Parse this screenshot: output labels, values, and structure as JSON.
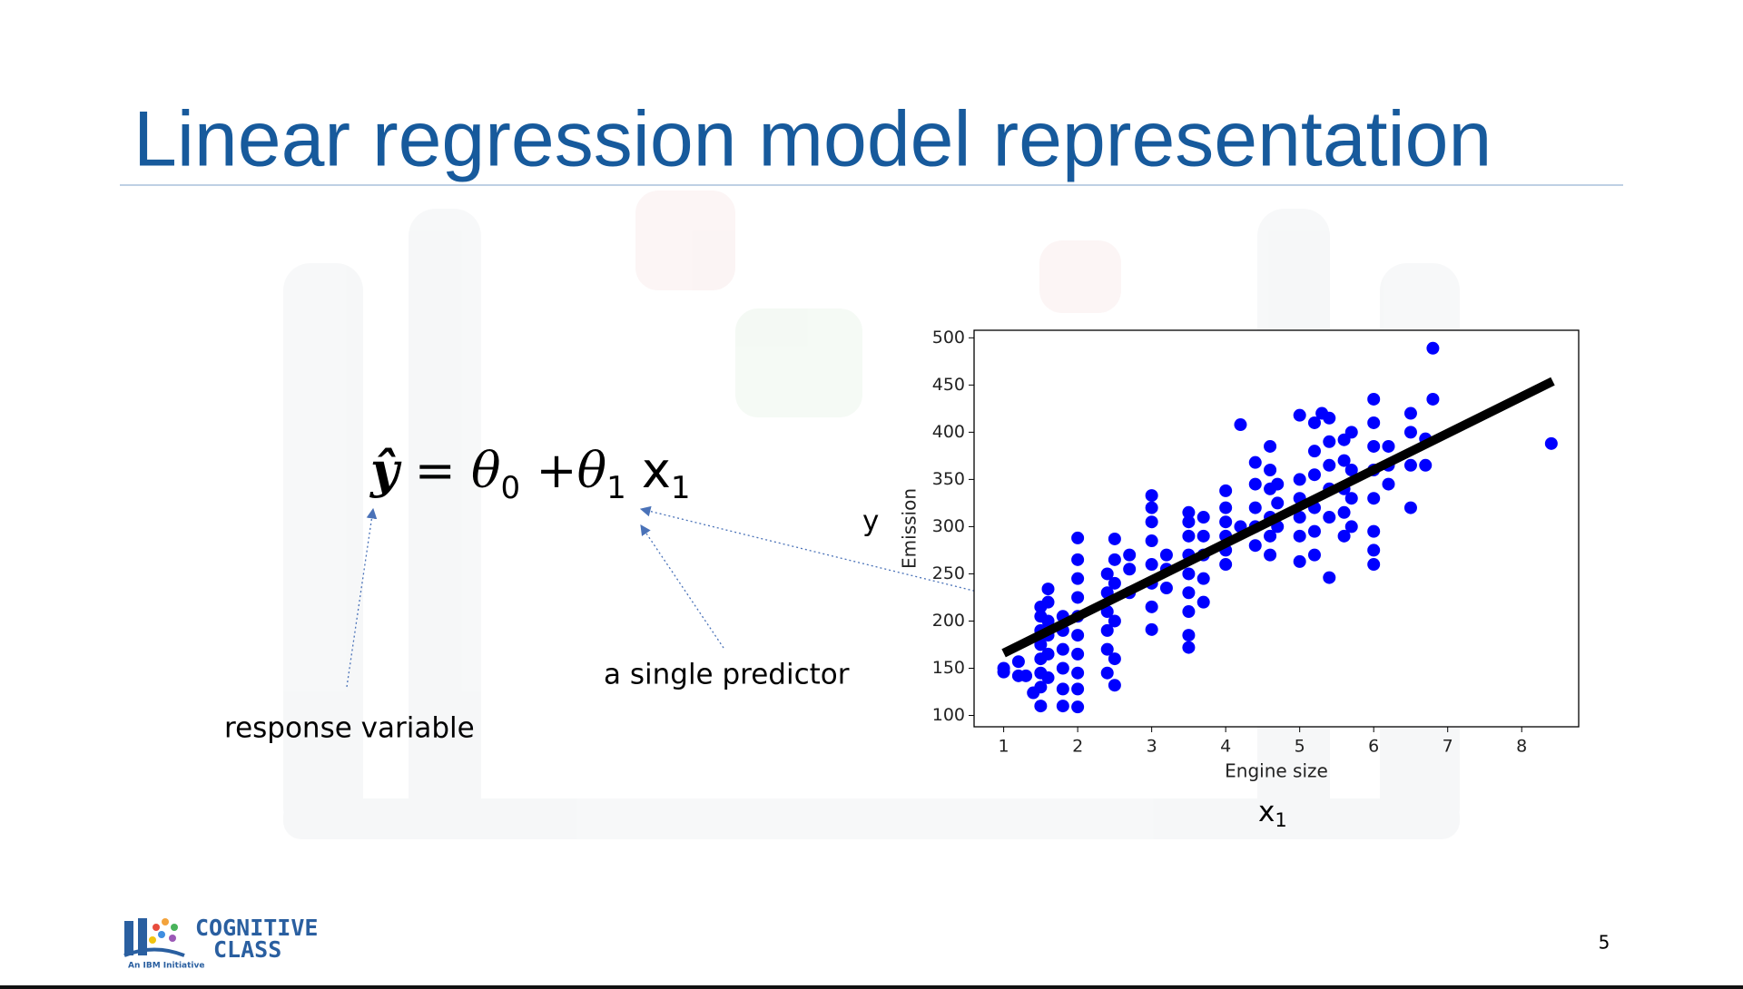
{
  "slide": {
    "title": "Linear regression model representation",
    "page_number": "5",
    "logo": {
      "line1": "COGNITIVE",
      "line2": "CLASS",
      "tagline": "An IBM Initiative"
    }
  },
  "equation": {
    "lhs": "ŷ",
    "equals": "=",
    "term0": {
      "symbol": "θ",
      "sub": "0"
    },
    "plus": "+",
    "term1": {
      "symbol": "θ",
      "sub": "1"
    },
    "variable": {
      "symbol": "x",
      "sub": "1"
    }
  },
  "annotations": {
    "response": "response variable",
    "predictor": "a single predictor",
    "y_label": "y",
    "x_label": {
      "symbol": "x",
      "sub": "1"
    }
  },
  "chart_data": {
    "type": "scatter",
    "xlabel": "Engine size",
    "ylabel": "Emission",
    "xlim": [
      0.6,
      8.77
    ],
    "ylim": [
      88,
      508
    ],
    "xticks": [
      1,
      2,
      3,
      4,
      5,
      6,
      7,
      8
    ],
    "yticks": [
      100,
      150,
      200,
      250,
      300,
      350,
      400,
      450,
      500
    ],
    "series": [
      {
        "type": "scatter",
        "color": "#0000ff",
        "x": [
          1.0,
          1.0,
          1.2,
          1.2,
          1.3,
          1.4,
          1.5,
          1.5,
          1.5,
          1.5,
          1.5,
          1.5,
          1.5,
          1.5,
          1.6,
          1.6,
          1.6,
          1.6,
          1.6,
          1.6,
          1.8,
          1.8,
          1.8,
          1.8,
          1.8,
          1.8,
          2.0,
          2.0,
          2.0,
          2.0,
          2.0,
          2.0,
          2.0,
          2.0,
          2.0,
          2.0,
          2.4,
          2.4,
          2.4,
          2.4,
          2.4,
          2.4,
          2.5,
          2.5,
          2.5,
          2.5,
          2.5,
          2.5,
          2.7,
          2.7,
          2.7,
          3.0,
          3.0,
          3.0,
          3.0,
          3.0,
          3.0,
          3.0,
          3.0,
          3.2,
          3.2,
          3.2,
          3.5,
          3.5,
          3.5,
          3.5,
          3.5,
          3.5,
          3.5,
          3.5,
          3.5,
          3.7,
          3.7,
          3.7,
          3.7,
          3.7,
          4.0,
          4.0,
          4.0,
          4.0,
          4.0,
          4.0,
          4.2,
          4.2,
          4.4,
          4.4,
          4.4,
          4.4,
          4.4,
          4.6,
          4.6,
          4.6,
          4.6,
          4.6,
          4.6,
          4.7,
          4.7,
          4.7,
          5.0,
          5.0,
          5.0,
          5.0,
          5.0,
          5.0,
          5.2,
          5.2,
          5.2,
          5.2,
          5.2,
          5.2,
          5.3,
          5.4,
          5.4,
          5.4,
          5.4,
          5.4,
          5.4,
          5.6,
          5.6,
          5.6,
          5.6,
          5.6,
          5.7,
          5.7,
          5.7,
          5.7,
          6.0,
          6.0,
          6.0,
          6.0,
          6.0,
          6.0,
          6.0,
          6.0,
          6.2,
          6.2,
          6.2,
          6.5,
          6.5,
          6.5,
          6.5,
          6.7,
          6.7,
          6.8,
          6.8,
          8.4
        ],
        "y": [
          150,
          146,
          157,
          142,
          142,
          124,
          110,
          130,
          145,
          160,
          175,
          190,
          205,
          215,
          140,
          165,
          185,
          200,
          220,
          234,
          110,
          128,
          150,
          170,
          190,
          205,
          109,
          128,
          145,
          165,
          185,
          205,
          225,
          245,
          265,
          288,
          145,
          170,
          190,
          210,
          230,
          250,
          132,
          160,
          200,
          240,
          265,
          287,
          230,
          255,
          270,
          191,
          215,
          240,
          260,
          285,
          305,
          320,
          333,
          235,
          255,
          270,
          172,
          185,
          210,
          230,
          250,
          270,
          290,
          305,
          315,
          220,
          245,
          270,
          290,
          310,
          260,
          275,
          290,
          305,
          320,
          338,
          408,
          300,
          280,
          300,
          320,
          345,
          368,
          270,
          290,
          310,
          340,
          360,
          385,
          300,
          325,
          345,
          263,
          290,
          310,
          330,
          350,
          418,
          270,
          295,
          320,
          355,
          380,
          410,
          420,
          246,
          310,
          340,
          365,
          390,
          415,
          290,
          315,
          340,
          370,
          392,
          300,
          330,
          360,
          400,
          260,
          275,
          295,
          330,
          360,
          385,
          410,
          435,
          345,
          365,
          385,
          320,
          365,
          400,
          420,
          365,
          393,
          435,
          489,
          388
        ]
      },
      {
        "type": "line",
        "color": "#000000",
        "x": [
          1.0,
          8.42
        ],
        "y": [
          166,
          454
        ]
      }
    ]
  }
}
